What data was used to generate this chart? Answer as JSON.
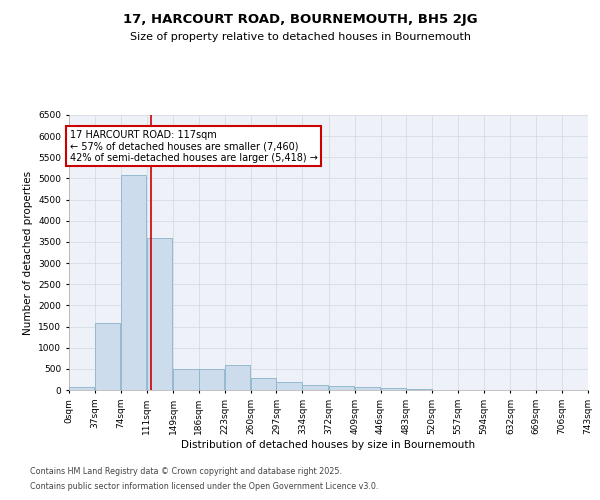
{
  "title_line1": "17, HARCOURT ROAD, BOURNEMOUTH, BH5 2JG",
  "title_line2": "Size of property relative to detached houses in Bournemouth",
  "xlabel": "Distribution of detached houses by size in Bournemouth",
  "ylabel": "Number of detached properties",
  "bar_color": "#ccdcec",
  "bar_edge_color": "#8ab4cc",
  "grid_color": "#d0d8e0",
  "bg_color": "#eef2f8",
  "vline_x": 117,
  "vline_color": "#cc0000",
  "annotation_text": "17 HARCOURT ROAD: 117sqm\n← 57% of detached houses are smaller (7,460)\n42% of semi-detached houses are larger (5,418) →",
  "annotation_box_color": "#cc0000",
  "bins": [
    0,
    37,
    74,
    111,
    149,
    186,
    223,
    260,
    297,
    334,
    372,
    409,
    446,
    483,
    520,
    557,
    594,
    632,
    669,
    706,
    743
  ],
  "counts": [
    80,
    1580,
    5080,
    3600,
    500,
    490,
    600,
    290,
    200,
    130,
    90,
    80,
    40,
    20,
    10,
    8,
    4,
    2,
    1,
    1
  ],
  "ylim": [
    0,
    6500
  ],
  "yticks": [
    0,
    500,
    1000,
    1500,
    2000,
    2500,
    3000,
    3500,
    4000,
    4500,
    5000,
    5500,
    6000,
    6500
  ],
  "footer_line1": "Contains HM Land Registry data © Crown copyright and database right 2025.",
  "footer_line2": "Contains public sector information licensed under the Open Government Licence v3.0.",
  "title_fontsize": 9.5,
  "subtitle_fontsize": 8,
  "axis_label_fontsize": 7.5,
  "tick_fontsize": 6.5,
  "footer_fontsize": 5.8,
  "annotation_fontsize": 7
}
